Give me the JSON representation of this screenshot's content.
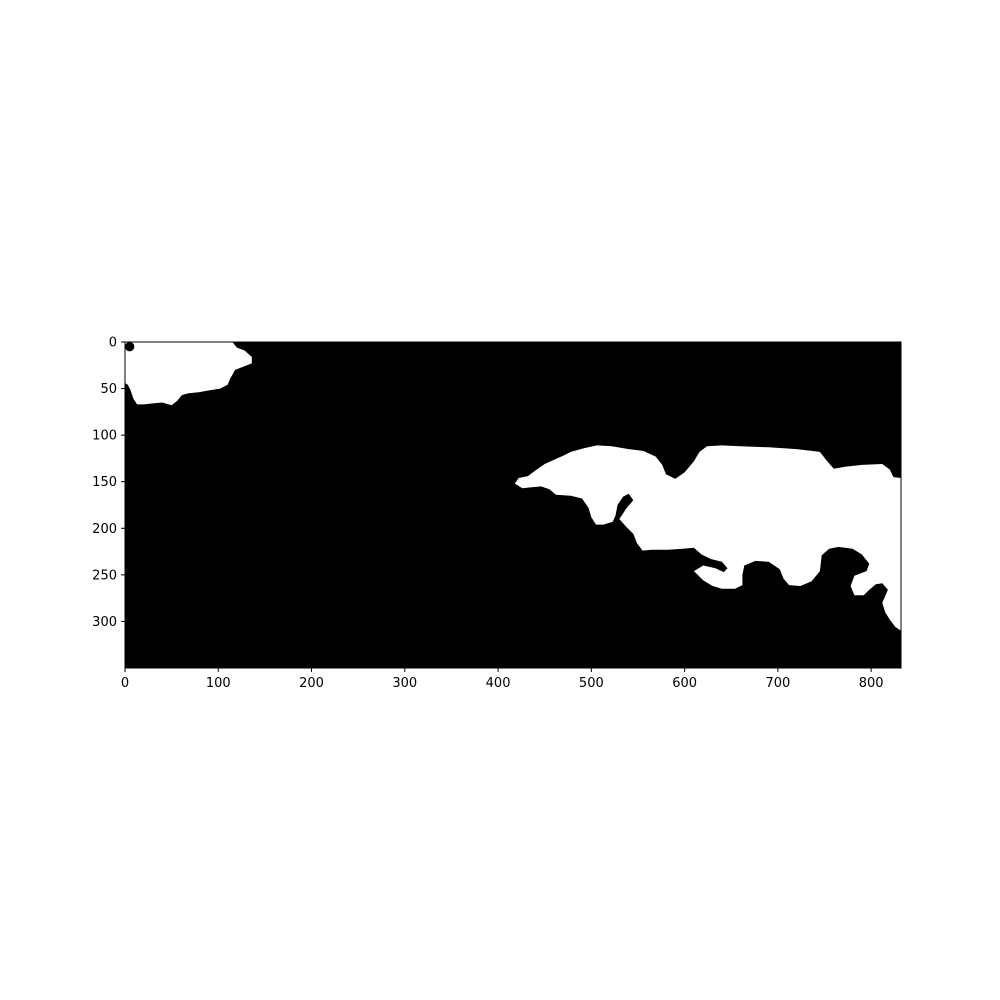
{
  "chart_data": {
    "type": "heatmap",
    "title": "",
    "xlabel": "",
    "ylabel": "",
    "colors": {
      "background": "#000000",
      "foreground": "#ffffff",
      "axis": "#000000"
    },
    "image_size": {
      "width": 832,
      "height": 350
    },
    "xlim": [
      0,
      832
    ],
    "ylim": [
      350,
      0
    ],
    "y_axis_inverted": true,
    "grid": false,
    "x_ticks": [
      0,
      100,
      200,
      300,
      400,
      500,
      600,
      700,
      800
    ],
    "y_ticks": [
      0,
      50,
      100,
      150,
      200,
      250,
      300
    ],
    "x_tick_labels": [
      "0",
      "100",
      "200",
      "300",
      "400",
      "500",
      "600",
      "700",
      "800"
    ],
    "y_tick_labels": [
      "0",
      "50",
      "100",
      "150",
      "200",
      "250",
      "300"
    ],
    "regions": [
      {
        "value": 1,
        "outline": [
          [
            0,
            0
          ],
          [
            115,
            0
          ],
          [
            120,
            6
          ],
          [
            128,
            9
          ],
          [
            136,
            16
          ],
          [
            136,
            23
          ],
          [
            128,
            26
          ],
          [
            118,
            30
          ],
          [
            113,
            39
          ],
          [
            110,
            46
          ],
          [
            102,
            50
          ],
          [
            90,
            52
          ],
          [
            79,
            54
          ],
          [
            68,
            55
          ],
          [
            61,
            57
          ],
          [
            56,
            63
          ],
          [
            50,
            68
          ],
          [
            40,
            65
          ],
          [
            29,
            66
          ],
          [
            20,
            67
          ],
          [
            13,
            67
          ],
          [
            9,
            61
          ],
          [
            6,
            52
          ],
          [
            3,
            46
          ],
          [
            0,
            44
          ]
        ]
      },
      {
        "value": 1,
        "outline": [
          [
            418,
            152
          ],
          [
            422,
            146
          ],
          [
            432,
            144
          ],
          [
            440,
            138
          ],
          [
            450,
            131
          ],
          [
            461,
            126
          ],
          [
            470,
            122
          ],
          [
            478,
            118
          ],
          [
            492,
            114
          ],
          [
            506,
            111
          ],
          [
            522,
            112
          ],
          [
            540,
            115
          ],
          [
            556,
            117
          ],
          [
            569,
            123
          ],
          [
            576,
            132
          ],
          [
            580,
            142
          ],
          [
            590,
            147
          ],
          [
            600,
            140
          ],
          [
            610,
            128
          ],
          [
            616,
            118
          ],
          [
            624,
            112
          ],
          [
            640,
            111
          ],
          [
            660,
            112
          ],
          [
            690,
            113
          ],
          [
            720,
            115
          ],
          [
            745,
            118
          ],
          [
            752,
            127
          ],
          [
            760,
            136
          ],
          [
            772,
            134
          ],
          [
            790,
            132
          ],
          [
            812,
            131
          ],
          [
            820,
            137
          ],
          [
            824,
            145
          ],
          [
            832,
            146
          ],
          [
            832,
            310
          ],
          [
            826,
            306
          ],
          [
            820,
            298
          ],
          [
            815,
            290
          ],
          [
            812,
            280
          ],
          [
            818,
            266
          ],
          [
            812,
            259
          ],
          [
            805,
            260
          ],
          [
            798,
            266
          ],
          [
            792,
            272
          ],
          [
            782,
            272
          ],
          [
            778,
            262
          ],
          [
            782,
            251
          ],
          [
            795,
            246
          ],
          [
            798,
            238
          ],
          [
            790,
            228
          ],
          [
            780,
            222
          ],
          [
            765,
            220
          ],
          [
            755,
            222
          ],
          [
            747,
            229
          ],
          [
            745,
            246
          ],
          [
            736,
            257
          ],
          [
            724,
            262
          ],
          [
            712,
            261
          ],
          [
            706,
            254
          ],
          [
            702,
            244
          ],
          [
            690,
            236
          ],
          [
            676,
            235
          ],
          [
            664,
            240
          ],
          [
            662,
            250
          ],
          [
            662,
            261
          ],
          [
            654,
            265
          ],
          [
            640,
            265
          ],
          [
            630,
            262
          ],
          [
            620,
            256
          ],
          [
            610,
            246
          ],
          [
            620,
            240
          ],
          [
            633,
            243
          ],
          [
            642,
            247
          ],
          [
            646,
            243
          ],
          [
            640,
            236
          ],
          [
            628,
            233
          ],
          [
            618,
            228
          ],
          [
            610,
            221
          ],
          [
            598,
            222
          ],
          [
            582,
            223
          ],
          [
            565,
            223
          ],
          [
            555,
            224
          ],
          [
            549,
            216
          ],
          [
            545,
            206
          ],
          [
            538,
            199
          ],
          [
            530,
            190
          ],
          [
            538,
            178
          ],
          [
            545,
            170
          ],
          [
            540,
            163
          ],
          [
            534,
            166
          ],
          [
            528,
            175
          ],
          [
            526,
            186
          ],
          [
            523,
            193
          ],
          [
            513,
            196
          ],
          [
            505,
            196
          ],
          [
            500,
            188
          ],
          [
            497,
            178
          ],
          [
            490,
            168
          ],
          [
            478,
            165
          ],
          [
            462,
            164
          ],
          [
            455,
            158
          ],
          [
            446,
            155
          ],
          [
            436,
            156
          ],
          [
            426,
            157
          ]
        ]
      }
    ],
    "holes": [
      {
        "value": 0,
        "cx": 5,
        "cy": 5,
        "r": 5
      }
    ]
  }
}
